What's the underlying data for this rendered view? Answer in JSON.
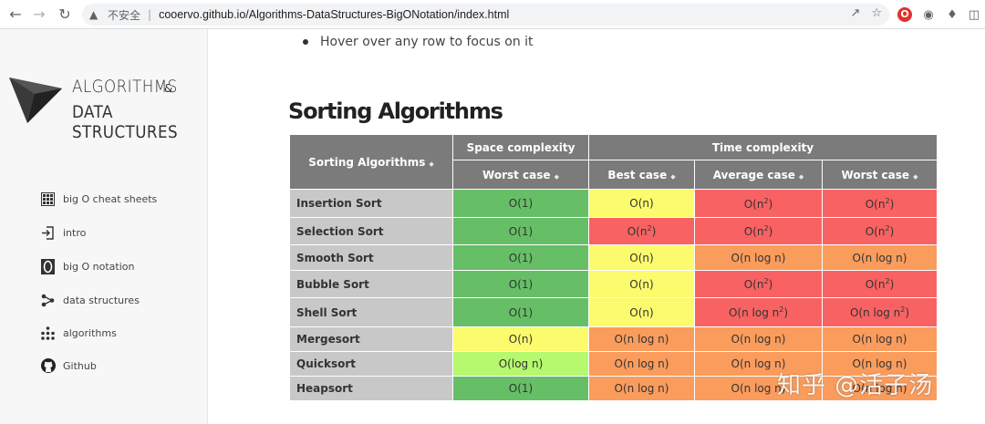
{
  "browser": {
    "insecure_label": "不安全",
    "url": "cooervo.github.io/Algorithms-DataStructures-BigONotation/index.html"
  },
  "sidebar": {
    "brand_line1": "ALGORITHMS",
    "brand_amp": "&",
    "brand_line2": "DATA STRUCTURES",
    "items": [
      {
        "label": "big O cheat sheets",
        "icon": "grid-icon"
      },
      {
        "label": "intro",
        "icon": "sign-in-icon"
      },
      {
        "label": "big O notation",
        "icon": "letter-o-icon"
      },
      {
        "label": "data structures",
        "icon": "share-icon"
      },
      {
        "label": "algorithms",
        "icon": "sitemap-icon"
      },
      {
        "label": "Github",
        "icon": "github-icon"
      }
    ]
  },
  "main": {
    "bullet": "Hover over any row to focus on it",
    "section_title": "Sorting Algorithms",
    "table": {
      "header_rowname": "Sorting Algorithms",
      "header_space": "Space complexity",
      "header_time": "Time complexity",
      "sub_space_worst": "Worst case",
      "sub_best": "Best case",
      "sub_average": "Average case",
      "sub_worst": "Worst case",
      "rows": [
        {
          "name": "Insertion Sort",
          "cells": [
            {
              "base": "O(1)",
              "sup": "",
              "tail": "",
              "color": "green"
            },
            {
              "base": "O(n)",
              "sup": "",
              "tail": "",
              "color": "yellow"
            },
            {
              "base": "O(n",
              "sup": "2",
              "tail": ")",
              "color": "red"
            },
            {
              "base": "O(n",
              "sup": "2",
              "tail": ")",
              "color": "red"
            }
          ]
        },
        {
          "name": "Selection Sort",
          "cells": [
            {
              "base": "O(1)",
              "sup": "",
              "tail": "",
              "color": "green"
            },
            {
              "base": "O(n",
              "sup": "2",
              "tail": ")",
              "color": "red"
            },
            {
              "base": "O(n",
              "sup": "2",
              "tail": ")",
              "color": "red"
            },
            {
              "base": "O(n",
              "sup": "2",
              "tail": ")",
              "color": "red"
            }
          ]
        },
        {
          "name": "Smooth Sort",
          "cells": [
            {
              "base": "O(1)",
              "sup": "",
              "tail": "",
              "color": "green"
            },
            {
              "base": "O(n)",
              "sup": "",
              "tail": "",
              "color": "yellow"
            },
            {
              "base": "O(n log n)",
              "sup": "",
              "tail": "",
              "color": "orange"
            },
            {
              "base": "O(n log n)",
              "sup": "",
              "tail": "",
              "color": "orange"
            }
          ]
        },
        {
          "name": "Bubble Sort",
          "cells": [
            {
              "base": "O(1)",
              "sup": "",
              "tail": "",
              "color": "green"
            },
            {
              "base": "O(n)",
              "sup": "",
              "tail": "",
              "color": "yellow"
            },
            {
              "base": "O(n",
              "sup": "2",
              "tail": ")",
              "color": "red"
            },
            {
              "base": "O(n",
              "sup": "2",
              "tail": ")",
              "color": "red"
            }
          ]
        },
        {
          "name": "Shell Sort",
          "cells": [
            {
              "base": "O(1)",
              "sup": "",
              "tail": "",
              "color": "green"
            },
            {
              "base": "O(n)",
              "sup": "",
              "tail": "",
              "color": "yellow"
            },
            {
              "base": "O(n log n",
              "sup": "2",
              "tail": ")",
              "color": "red"
            },
            {
              "base": "O(n log n",
              "sup": "2",
              "tail": ")",
              "color": "red"
            }
          ]
        },
        {
          "name": "Mergesort",
          "cells": [
            {
              "base": "O(n)",
              "sup": "",
              "tail": "",
              "color": "yellow"
            },
            {
              "base": "O(n log n)",
              "sup": "",
              "tail": "",
              "color": "orange"
            },
            {
              "base": "O(n log n)",
              "sup": "",
              "tail": "",
              "color": "orange"
            },
            {
              "base": "O(n log n)",
              "sup": "",
              "tail": "",
              "color": "orange"
            }
          ]
        },
        {
          "name": "Quicksort",
          "cells": [
            {
              "base": "O(log n)",
              "sup": "",
              "tail": "",
              "color": "lime"
            },
            {
              "base": "O(n log n)",
              "sup": "",
              "tail": "",
              "color": "orange"
            },
            {
              "base": "O(n log n)",
              "sup": "",
              "tail": "",
              "color": "orange"
            },
            {
              "base": "O(n log n)",
              "sup": "",
              "tail": "",
              "color": "orange"
            }
          ]
        },
        {
          "name": "Heapsort",
          "cells": [
            {
              "base": "O(1)",
              "sup": "",
              "tail": "",
              "color": "green"
            },
            {
              "base": "O(n log n)",
              "sup": "",
              "tail": "",
              "color": "orange"
            },
            {
              "base": "O(n log n)",
              "sup": "",
              "tail": "",
              "color": "orange"
            },
            {
              "base": "O(n log n)",
              "sup": "",
              "tail": "",
              "color": "orange"
            }
          ]
        }
      ]
    }
  },
  "watermark": "知乎 @活子汤"
}
